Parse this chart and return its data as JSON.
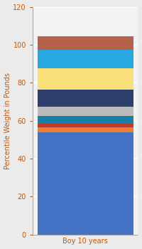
{
  "categories": [
    "Boy 10 years"
  ],
  "segments": [
    {
      "value": 54,
      "color": "#4472C4"
    },
    {
      "value": 2.5,
      "color": "#ED7D31"
    },
    {
      "value": 2,
      "color": "#C0392B"
    },
    {
      "value": 4,
      "color": "#1A7FA8"
    },
    {
      "value": 5,
      "color": "#BBBBBB"
    },
    {
      "value": 9,
      "color": "#2C3E6B"
    },
    {
      "value": 11,
      "color": "#F9E07A"
    },
    {
      "value": 10,
      "color": "#29A8E0"
    },
    {
      "value": 7,
      "color": "#B5624A"
    }
  ],
  "ylabel": "Percentile Weight in Pounds",
  "xlabel": "Boy 10 years",
  "ylim": [
    0,
    120
  ],
  "yticks": [
    0,
    20,
    40,
    60,
    80,
    100,
    120
  ],
  "background_color": "#EBEBEB",
  "axis_background": "#F2F2F2",
  "tick_label_color": "#CC5500",
  "axis_label_color": "#CC5500",
  "grid_color": "#FFFFFF",
  "bar_width": 0.35,
  "label_fontsize": 7,
  "tick_fontsize": 7
}
